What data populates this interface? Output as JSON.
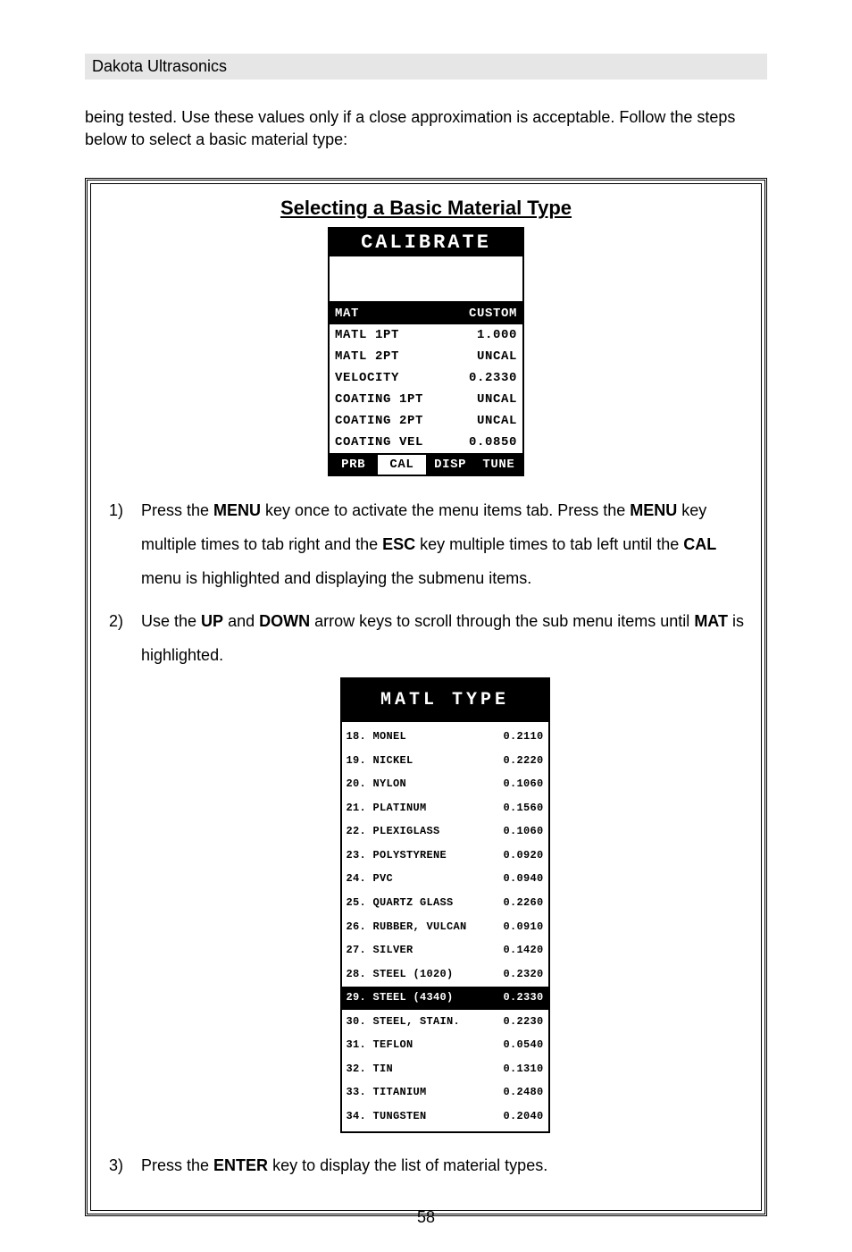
{
  "header": "Dakota Ultrasonics",
  "intro": "being tested.  Use these values only if a close approximation is acceptable.  Follow the steps below to select a basic material type:",
  "section_title": "Selecting a Basic Material Type",
  "page_number": "58",
  "calibrate_screen": {
    "title": "CALIBRATE",
    "rows": [
      {
        "label": "MAT",
        "value": "CUSTOM",
        "highlighted": true
      },
      {
        "label": "MATL 1PT",
        "value": "1.000",
        "highlighted": false
      },
      {
        "label": "MATL 2PT",
        "value": "UNCAL",
        "highlighted": false
      },
      {
        "label": "VELOCITY",
        "value": "0.2330",
        "highlighted": false
      },
      {
        "label": "COATING 1PT",
        "value": "UNCAL",
        "highlighted": false
      },
      {
        "label": "COATING 2PT",
        "value": "UNCAL",
        "highlighted": false
      },
      {
        "label": "COATING VEL",
        "value": "0.0850",
        "highlighted": false
      }
    ],
    "tabs": [
      {
        "label": "PRB",
        "active": false
      },
      {
        "label": "CAL",
        "active": true
      },
      {
        "label": "DISP",
        "active": false
      },
      {
        "label": "TUNE",
        "active": false
      }
    ]
  },
  "matl_screen": {
    "title": "MATL TYPE",
    "rows": [
      {
        "num": "18",
        "name": "MONEL",
        "value": "0.2110",
        "highlighted": false
      },
      {
        "num": "19",
        "name": "NICKEL",
        "value": "0.2220",
        "highlighted": false
      },
      {
        "num": "20",
        "name": "NYLON",
        "value": "0.1060",
        "highlighted": false
      },
      {
        "num": "21",
        "name": "PLATINUM",
        "value": "0.1560",
        "highlighted": false
      },
      {
        "num": "22",
        "name": "PLEXIGLASS",
        "value": "0.1060",
        "highlighted": false
      },
      {
        "num": "23",
        "name": "POLYSTYRENE",
        "value": "0.0920",
        "highlighted": false
      },
      {
        "num": "24",
        "name": "PVC",
        "value": "0.0940",
        "highlighted": false
      },
      {
        "num": "25",
        "name": "QUARTZ GLASS",
        "value": "0.2260",
        "highlighted": false
      },
      {
        "num": "26",
        "name": "RUBBER, VULCAN",
        "value": "0.0910",
        "highlighted": false
      },
      {
        "num": "27",
        "name": "SILVER",
        "value": "0.1420",
        "highlighted": false
      },
      {
        "num": "28",
        "name": "STEEL (1020)",
        "value": "0.2320",
        "highlighted": false
      },
      {
        "num": "29",
        "name": "STEEL (4340)",
        "value": "0.2330",
        "highlighted": true
      },
      {
        "num": "30",
        "name": "STEEL, STAIN.",
        "value": "0.2230",
        "highlighted": false
      },
      {
        "num": "31",
        "name": "TEFLON",
        "value": "0.0540",
        "highlighted": false
      },
      {
        "num": "32",
        "name": "TIN",
        "value": "0.1310",
        "highlighted": false
      },
      {
        "num": "33",
        "name": "TITANIUM",
        "value": "0.2480",
        "highlighted": false
      },
      {
        "num": "34",
        "name": "TUNGSTEN",
        "value": "0.2040",
        "highlighted": false
      }
    ]
  },
  "steps": {
    "s1": {
      "k1": "MENU",
      "k2": "MENU",
      "k3": "ESC",
      "k4": "CAL",
      "t1": "Press the ",
      "t2": " key once to activate the menu items tab.  Press the ",
      "t3": " key multiple times to tab right and the ",
      "t4": " key multiple times to tab left until the ",
      "t5": " menu is highlighted and displaying the submenu items."
    },
    "s2": {
      "k1": "UP",
      "k2": "DOWN",
      "k3": "MAT",
      "t1": "Use the ",
      "t2": " and ",
      "t3": " arrow keys to scroll through the sub menu items until ",
      "t4": " is highlighted."
    },
    "s3": {
      "k1": "ENTER",
      "t1": "Press the ",
      "t2": " key to display the list of material types."
    }
  },
  "style": {
    "page_bg": "#ffffff",
    "header_bg": "#e6e6e6",
    "text_color": "#000000",
    "lcd_inverse_bg": "#000000",
    "lcd_inverse_fg": "#ffffff",
    "body_fontsize": 18,
    "lcd_fontsize": 14,
    "mat_fontsize": 12
  }
}
